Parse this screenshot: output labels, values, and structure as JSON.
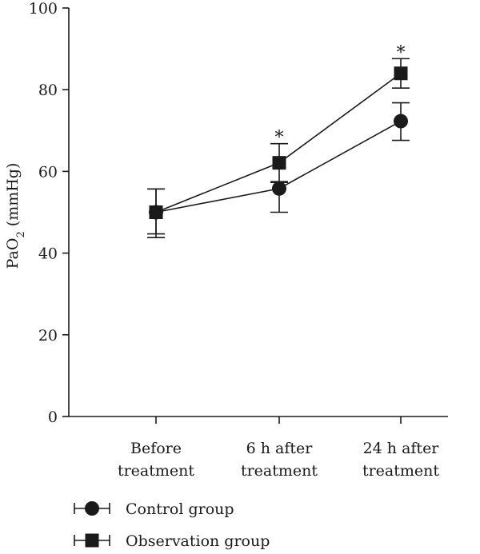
{
  "chart_data": {
    "type": "line",
    "categories": [
      [
        "Before",
        "treatment"
      ],
      [
        "6 h after",
        "treatment"
      ],
      [
        "24 h after",
        "treatment"
      ]
    ],
    "ylabel": {
      "main": "PaO",
      "sub": "2",
      "unit": " (mmHg)"
    },
    "ylim": [
      0,
      100
    ],
    "yticks": [
      0,
      20,
      40,
      60,
      80,
      100
    ],
    "series": [
      {
        "name": "Control group",
        "marker": "circle",
        "values": [
          50,
          55.8,
          72.3
        ],
        "err_low": [
          44.7,
          50.0,
          67.6
        ],
        "err_high": [
          55.7,
          57.3,
          76.8
        ]
      },
      {
        "name": "Observation group",
        "marker": "square",
        "values": [
          50,
          62.1,
          84.0
        ],
        "err_low": [
          43.8,
          57.5,
          80.4
        ],
        "err_high": [
          55.7,
          66.8,
          87.6
        ]
      }
    ],
    "annotations": [
      {
        "category_index": 1,
        "text": "*",
        "y": 69.5
      },
      {
        "category_index": 2,
        "text": "*",
        "y": 90.2
      }
    ],
    "legend_position": "bottom-left",
    "colors": {
      "marker": "#1a1a1a",
      "line": "#1a1a1a"
    }
  }
}
